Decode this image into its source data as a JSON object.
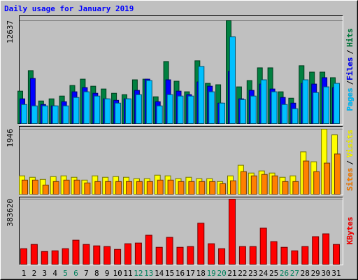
{
  "chart_data": [
    {
      "type": "bar",
      "title": "Daily usage for January 2019",
      "ylim": [
        0,
        12637
      ],
      "yticks": [
        12637
      ],
      "grid": true,
      "legend_separator": "/",
      "series": [
        {
          "name": "Hits",
          "color": "#008040",
          "values": [
            4040,
            6540,
            2840,
            3100,
            3440,
            4730,
            5500,
            4640,
            4300,
            3780,
            3610,
            5420,
            5500,
            3350,
            7650,
            5250,
            3960,
            7740,
            4990,
            4820,
            12637,
            4560,
            5330,
            6880,
            6880,
            3960,
            3180,
            7140,
            6360,
            6360,
            5680
          ]
        },
        {
          "name": "Files",
          "color": "#0000ff",
          "values": [
            3100,
            5590,
            2410,
            2240,
            2750,
            3960,
            4470,
            3780,
            3100,
            2920,
            3100,
            4130,
            5500,
            2750,
            5420,
            4040,
            3610,
            5160,
            4640,
            2580,
            6450,
            3100,
            4130,
            4900,
            4300,
            3270,
            2580,
            4990,
            4900,
            5680,
            4470
          ]
        },
        {
          "name": "Pages",
          "color": "#00c0ff",
          "values": [
            2410,
            2240,
            2240,
            2240,
            2240,
            3270,
            3960,
            3440,
            3100,
            2580,
            3100,
            3610,
            5330,
            2240,
            3610,
            3440,
            3440,
            7050,
            3960,
            2580,
            10660,
            3010,
            3440,
            5420,
            3960,
            2410,
            1890,
            5420,
            3870,
            4560,
            4990
          ]
        }
      ]
    },
    {
      "type": "bar",
      "ylim": [
        0,
        1946
      ],
      "yticks": [
        1946
      ],
      "grid": true,
      "legend_separator": "/",
      "series": [
        {
          "name": "Visits",
          "color": "#ffff00",
          "values": [
            565,
            523,
            460,
            543,
            565,
            523,
            439,
            565,
            523,
            543,
            523,
            481,
            481,
            585,
            565,
            481,
            523,
            481,
            481,
            397,
            565,
            878,
            648,
            711,
            648,
            523,
            565,
            1275,
            982,
            1946,
            1777
          ]
        },
        {
          "name": "Sites",
          "color": "#ff8000",
          "values": [
            439,
            439,
            293,
            397,
            439,
            439,
            355,
            397,
            397,
            397,
            397,
            397,
            397,
            439,
            439,
            397,
            397,
            397,
            397,
            334,
            418,
            690,
            564,
            606,
            564,
            397,
            397,
            1003,
            690,
            941,
            1212
          ]
        }
      ]
    },
    {
      "type": "bar",
      "ylim": [
        0,
        383620
      ],
      "yticks": [
        383620
      ],
      "grid": true,
      "categories": [
        "1",
        "2",
        "3",
        "4",
        "5",
        "6",
        "7",
        "8",
        "9",
        "10",
        "11",
        "12",
        "13",
        "14",
        "15",
        "16",
        "17",
        "18",
        "19",
        "20",
        "21",
        "22",
        "23",
        "24",
        "25",
        "26",
        "27",
        "28",
        "29",
        "30",
        "31"
      ],
      "category_colors": [
        "#000000",
        "#000000",
        "#000000",
        "#000000",
        "#00805c",
        "#00805c",
        "#000000",
        "#000000",
        "#000000",
        "#000000",
        "#000000",
        "#00805c",
        "#00805c",
        "#000000",
        "#000000",
        "#000000",
        "#000000",
        "#000000",
        "#00805c",
        "#00805c",
        "#000000",
        "#000000",
        "#000000",
        "#000000",
        "#000000",
        "#00805c",
        "#00805c",
        "#000000",
        "#000000",
        "#000000",
        "#000000"
      ],
      "series": [
        {
          "name": "KBytes",
          "color": "#ff0000",
          "values": [
            94900,
            119600,
            78400,
            82500,
            94900,
            144400,
            119600,
            111400,
            107300,
            90800,
            123800,
            127900,
            173300,
            103100,
            160900,
            103100,
            107300,
            243400,
            123800,
            94900,
            383620,
            107300,
            107300,
            214500,
            136100,
            103100,
            82500,
            107300,
            165000,
            181500,
            119600
          ]
        }
      ]
    }
  ]
}
